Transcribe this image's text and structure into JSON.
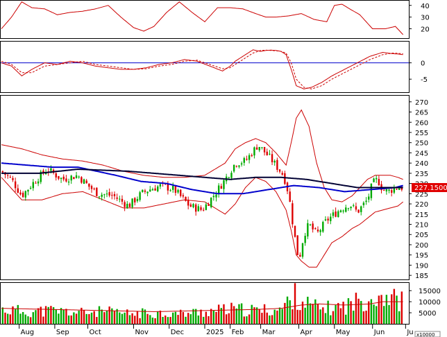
{
  "chart_data": [
    {
      "panel": "oscillator",
      "type": "line",
      "ylim": [
        12,
        44
      ],
      "yticks": [
        "40",
        "30",
        "20"
      ],
      "series": [
        {
          "color": "#cc0000",
          "x": [
            0,
            4,
            8,
            12,
            17,
            22,
            27,
            32,
            37,
            42,
            47,
            52,
            56,
            60,
            65,
            70,
            75,
            80,
            85,
            90,
            95,
            100,
            104,
            108,
            113,
            118,
            123,
            128,
            131,
            134,
            137,
            141,
            146,
            151,
            155,
            158
          ],
          "values": [
            20,
            30,
            43,
            38,
            37,
            32,
            34,
            35,
            37,
            40,
            30,
            21,
            18,
            22,
            34,
            43,
            34,
            26,
            38,
            38,
            37,
            33,
            30,
            30,
            31,
            33,
            28,
            26,
            40,
            41,
            37,
            32,
            20,
            20,
            22,
            15
          ]
        }
      ]
    },
    {
      "panel": "macd",
      "type": "line",
      "ylim": [
        -9,
        6.5
      ],
      "yticks": [
        "0",
        "-5"
      ],
      "zero_line": 0,
      "series": [
        {
          "color": "#cc0000",
          "x": [
            0,
            4,
            8,
            12,
            17,
            22,
            27,
            32,
            37,
            42,
            47,
            52,
            57,
            62,
            67,
            72,
            77,
            82,
            87,
            90,
            92,
            95,
            99,
            102,
            104,
            106,
            108,
            110,
            112,
            114,
            116,
            119,
            122,
            126,
            130,
            135,
            140,
            145,
            150,
            154,
            156,
            158
          ],
          "values": [
            0,
            -1,
            -4,
            -2,
            0,
            -0.5,
            0.5,
            0,
            -1,
            -1.5,
            -2,
            -2,
            -1.5,
            -0.5,
            0,
            1,
            0.5,
            -1,
            -2.5,
            -1,
            0.5,
            2,
            4,
            3.5,
            3.8,
            3.9,
            3.8,
            3.5,
            2.5,
            -2,
            -7,
            -8,
            -7.5,
            -6,
            -4,
            -2,
            0,
            2,
            3.2,
            2.8,
            2.7,
            2.5
          ]
        },
        {
          "color": "#cc0000",
          "dashed": true,
          "x": [
            0,
            4,
            8,
            12,
            17,
            22,
            27,
            32,
            37,
            42,
            47,
            52,
            57,
            62,
            67,
            72,
            77,
            82,
            87,
            90,
            92,
            95,
            99,
            102,
            104,
            106,
            108,
            110,
            112,
            114,
            116,
            119,
            122,
            126,
            130,
            135,
            140,
            145,
            150,
            154,
            156,
            158
          ],
          "values": [
            0.5,
            -0.5,
            -3,
            -3,
            -1,
            -0.5,
            0,
            0.5,
            -0.5,
            -1,
            -1.5,
            -2,
            -1.8,
            -1,
            -0.5,
            0.5,
            0.8,
            -0.5,
            -1.8,
            -1.5,
            -0.5,
            1,
            3,
            3.8,
            3.9,
            3.8,
            3.7,
            3.5,
            3,
            0,
            -5,
            -7.5,
            -8,
            -7,
            -5,
            -3,
            -1,
            1,
            2.5,
            3,
            2.9,
            2.8
          ]
        }
      ]
    },
    {
      "panel": "price",
      "type": "candlestick",
      "ylim": [
        183,
        273
      ],
      "yticks": [
        "270",
        "265",
        "260",
        "255",
        "250",
        "245",
        "240",
        "235",
        "230",
        "225",
        "220",
        "215",
        "210",
        "205",
        "200",
        "195",
        "190",
        "185"
      ],
      "last_price_label": "227.1500",
      "price_anchors": {
        "x": [
          0,
          4,
          8,
          13,
          18,
          24,
          30,
          34,
          38,
          44,
          50,
          55,
          58,
          63,
          68,
          74,
          79,
          84,
          88,
          92,
          96,
          101,
          106,
          111,
          113,
          115,
          117,
          119,
          121,
          124,
          128,
          133,
          137,
          140,
          144,
          146,
          148,
          150,
          152,
          155,
          158
        ],
        "values": [
          236,
          232,
          224,
          231,
          237,
          232,
          234,
          229,
          225,
          224,
          219,
          225,
          227,
          229,
          227,
          219,
          217,
          225,
          232,
          240,
          241,
          249,
          242,
          234,
          225,
          207,
          192,
          205,
          210,
          205,
          212,
          217,
          220,
          216,
          222,
          230,
          232,
          227,
          226,
          228,
          228
        ]
      },
      "ma_long": {
        "color": "#000033",
        "x": [
          0,
          15,
          30,
          50,
          70,
          90,
          100,
          110,
          120,
          130,
          140,
          150,
          158
        ],
        "values": [
          235,
          235,
          237,
          236,
          234,
          232,
          233,
          233,
          232,
          230,
          228,
          228,
          228
        ]
      },
      "ma_mid": {
        "color": "#0000cc",
        "x": [
          0,
          20,
          30,
          45,
          55,
          65,
          75,
          85,
          95,
          100,
          105,
          115,
          125,
          135,
          145,
          155,
          158
        ],
        "values": [
          240,
          238,
          238,
          234,
          231,
          230,
          227,
          225,
          225,
          226,
          227,
          229,
          228,
          226,
          227,
          228,
          229
        ]
      },
      "bollinger_upper": {
        "color": "#cc0000",
        "x": [
          0,
          8,
          16,
          24,
          32,
          40,
          48,
          56,
          64,
          72,
          80,
          88,
          92,
          96,
          100,
          104,
          108,
          112,
          114,
          116,
          118,
          121,
          124,
          127,
          130,
          134,
          138,
          141,
          144,
          147,
          150,
          153,
          156,
          158
        ],
        "values": [
          249,
          247,
          244,
          242,
          241,
          239,
          236,
          234,
          233,
          233,
          234,
          240,
          247,
          250,
          252,
          250,
          245,
          239,
          250,
          262,
          266,
          258,
          240,
          228,
          222,
          221,
          224,
          228,
          232,
          234,
          234,
          234,
          233,
          232
        ]
      },
      "bollinger_lower": {
        "color": "#cc0000",
        "x": [
          0,
          8,
          16,
          24,
          32,
          40,
          48,
          56,
          64,
          72,
          80,
          88,
          92,
          96,
          100,
          104,
          108,
          112,
          114,
          116,
          118,
          121,
          124,
          127,
          130,
          134,
          138,
          141,
          144,
          147,
          150,
          153,
          156,
          158
        ],
        "values": [
          233,
          222,
          222,
          225,
          226,
          222,
          218,
          218,
          220,
          222,
          221,
          215,
          220,
          228,
          233,
          231,
          226,
          217,
          207,
          195,
          192,
          189,
          189,
          195,
          201,
          204,
          208,
          210,
          213,
          216,
          217,
          218,
          219,
          221
        ]
      }
    },
    {
      "panel": "volume",
      "type": "bar",
      "ylim": [
        0,
        18500
      ],
      "yticks": [
        "15000",
        "10000",
        "5000"
      ],
      "unit_label": "x10000",
      "volume_anchors": {
        "x": [
          0,
          10,
          20,
          30,
          40,
          50,
          60,
          70,
          80,
          90,
          100,
          110,
          113,
          116,
          120,
          125,
          130,
          135,
          140,
          145,
          150,
          155,
          158
        ],
        "values": [
          6500,
          5500,
          6000,
          5000,
          5500,
          4500,
          5000,
          4500,
          5500,
          6500,
          6000,
          6500,
          10000,
          13000,
          9000,
          7000,
          7000,
          8000,
          10000,
          12000,
          13500,
          11000,
          10000
        ]
      },
      "volume_ma": {
        "color": "#cc0000",
        "x": [
          0,
          20,
          40,
          60,
          80,
          100,
          110,
          118,
          125,
          135,
          145,
          150,
          158
        ],
        "values": [
          7000,
          6500,
          6000,
          5500,
          6000,
          6500,
          7000,
          8500,
          9000,
          8500,
          9000,
          10000,
          10000
        ]
      }
    }
  ],
  "x_axis": {
    "months": [
      {
        "label": "Aug",
        "x": 7
      },
      {
        "label": "Sep",
        "x": 21
      },
      {
        "label": "Oct",
        "x": 34
      },
      {
        "label": "Nov",
        "x": 52
      },
      {
        "label": "Dec",
        "x": 66
      },
      {
        "label": "2025",
        "x": 80
      },
      {
        "label": "Feb",
        "x": 90
      },
      {
        "label": "Mar",
        "x": 102
      },
      {
        "label": "Apr",
        "x": 117
      },
      {
        "label": "May",
        "x": 131
      },
      {
        "label": "Jun",
        "x": 146
      },
      {
        "label": "Ju",
        "x": 159
      }
    ]
  }
}
